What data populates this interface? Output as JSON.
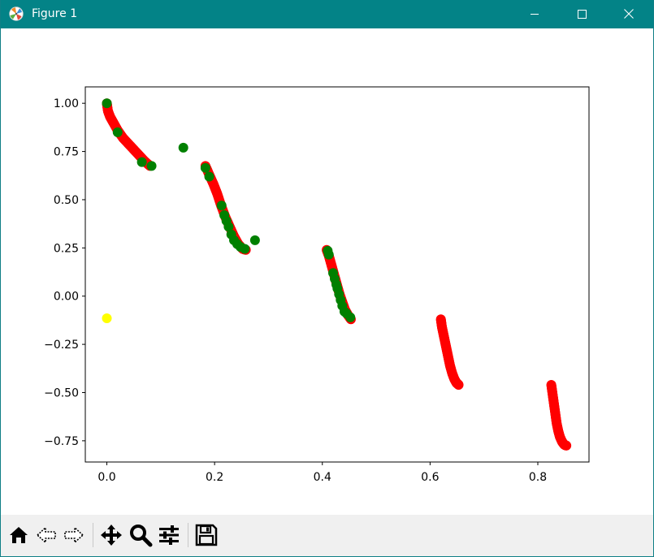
{
  "window": {
    "title": "Figure 1"
  },
  "chart_data": {
    "type": "scatter",
    "xlim": [
      -0.04,
      0.895
    ],
    "ylim": [
      -0.86,
      1.085
    ],
    "xticks": [
      0.0,
      0.2,
      0.4,
      0.6,
      0.8
    ],
    "xtick_labels": [
      "0.0",
      "0.2",
      "0.4",
      "0.6",
      "0.8"
    ],
    "yticks": [
      1.0,
      0.75,
      0.5,
      0.25,
      0.0,
      -0.25,
      -0.5,
      -0.75
    ],
    "ytick_labels": [
      "1.00",
      "0.75",
      "0.50",
      "0.25",
      "0.00",
      "−0.25",
      "−0.50",
      "−0.75"
    ],
    "grid": false,
    "series": [
      {
        "color": "#ff0000",
        "segments": [
          [
            [
              0.0,
              1.0
            ],
            [
              0.002,
              0.96
            ],
            [
              0.006,
              0.93
            ],
            [
              0.012,
              0.9
            ],
            [
              0.02,
              0.86
            ],
            [
              0.03,
              0.82
            ],
            [
              0.04,
              0.79
            ],
            [
              0.05,
              0.76
            ],
            [
              0.06,
              0.73
            ],
            [
              0.07,
              0.7
            ],
            [
              0.08,
              0.675
            ]
          ],
          [
            [
              0.183,
              0.675
            ],
            [
              0.19,
              0.63
            ],
            [
              0.198,
              0.58
            ],
            [
              0.205,
              0.53
            ],
            [
              0.212,
              0.47
            ],
            [
              0.22,
              0.41
            ],
            [
              0.228,
              0.36
            ],
            [
              0.236,
              0.31
            ],
            [
              0.244,
              0.27
            ],
            [
              0.252,
              0.245
            ],
            [
              0.258,
              0.24
            ]
          ],
          [
            [
              0.408,
              0.24
            ],
            [
              0.412,
              0.21
            ],
            [
              0.416,
              0.17
            ],
            [
              0.42,
              0.13
            ],
            [
              0.424,
              0.09
            ],
            [
              0.428,
              0.05
            ],
            [
              0.432,
              0.01
            ],
            [
              0.437,
              -0.03
            ],
            [
              0.442,
              -0.07
            ],
            [
              0.448,
              -0.1
            ],
            [
              0.453,
              -0.12
            ]
          ],
          [
            [
              0.62,
              -0.12
            ],
            [
              0.622,
              -0.16
            ],
            [
              0.625,
              -0.2
            ],
            [
              0.628,
              -0.24
            ],
            [
              0.631,
              -0.28
            ],
            [
              0.634,
              -0.32
            ],
            [
              0.637,
              -0.36
            ],
            [
              0.641,
              -0.4
            ],
            [
              0.645,
              -0.43
            ],
            [
              0.649,
              -0.45
            ],
            [
              0.653,
              -0.46
            ]
          ],
          [
            [
              0.825,
              -0.46
            ],
            [
              0.827,
              -0.5
            ],
            [
              0.829,
              -0.54
            ],
            [
              0.831,
              -0.58
            ],
            [
              0.833,
              -0.62
            ],
            [
              0.835,
              -0.66
            ],
            [
              0.838,
              -0.7
            ],
            [
              0.841,
              -0.73
            ],
            [
              0.845,
              -0.755
            ],
            [
              0.849,
              -0.77
            ],
            [
              0.853,
              -0.775
            ]
          ]
        ]
      },
      {
        "color": "#008000",
        "points": [
          [
            0.0,
            1.0
          ],
          [
            0.02,
            0.85
          ],
          [
            0.065,
            0.695
          ],
          [
            0.083,
            0.675
          ],
          [
            0.142,
            0.77
          ],
          [
            0.183,
            0.665
          ],
          [
            0.19,
            0.62
          ],
          [
            0.213,
            0.47
          ],
          [
            0.218,
            0.42
          ],
          [
            0.222,
            0.39
          ],
          [
            0.226,
            0.36
          ],
          [
            0.231,
            0.32
          ],
          [
            0.236,
            0.29
          ],
          [
            0.242,
            0.27
          ],
          [
            0.248,
            0.255
          ],
          [
            0.256,
            0.245
          ],
          [
            0.275,
            0.29
          ],
          [
            0.41,
            0.235
          ],
          [
            0.412,
            0.215
          ],
          [
            0.42,
            0.12
          ],
          [
            0.423,
            0.09
          ],
          [
            0.426,
            0.06
          ],
          [
            0.428,
            0.04
          ],
          [
            0.431,
            0.01
          ],
          [
            0.434,
            -0.02
          ],
          [
            0.437,
            -0.05
          ],
          [
            0.441,
            -0.08
          ],
          [
            0.445,
            -0.09
          ],
          [
            0.452,
            -0.11
          ]
        ]
      },
      {
        "color": "#ffff00",
        "points": [
          [
            0.0,
            -0.115
          ]
        ]
      }
    ]
  },
  "toolbar": {
    "icons": [
      "home-icon",
      "back-icon",
      "forward-icon",
      "pan-icon",
      "zoom-icon",
      "configure-subplots-icon",
      "save-icon"
    ]
  }
}
